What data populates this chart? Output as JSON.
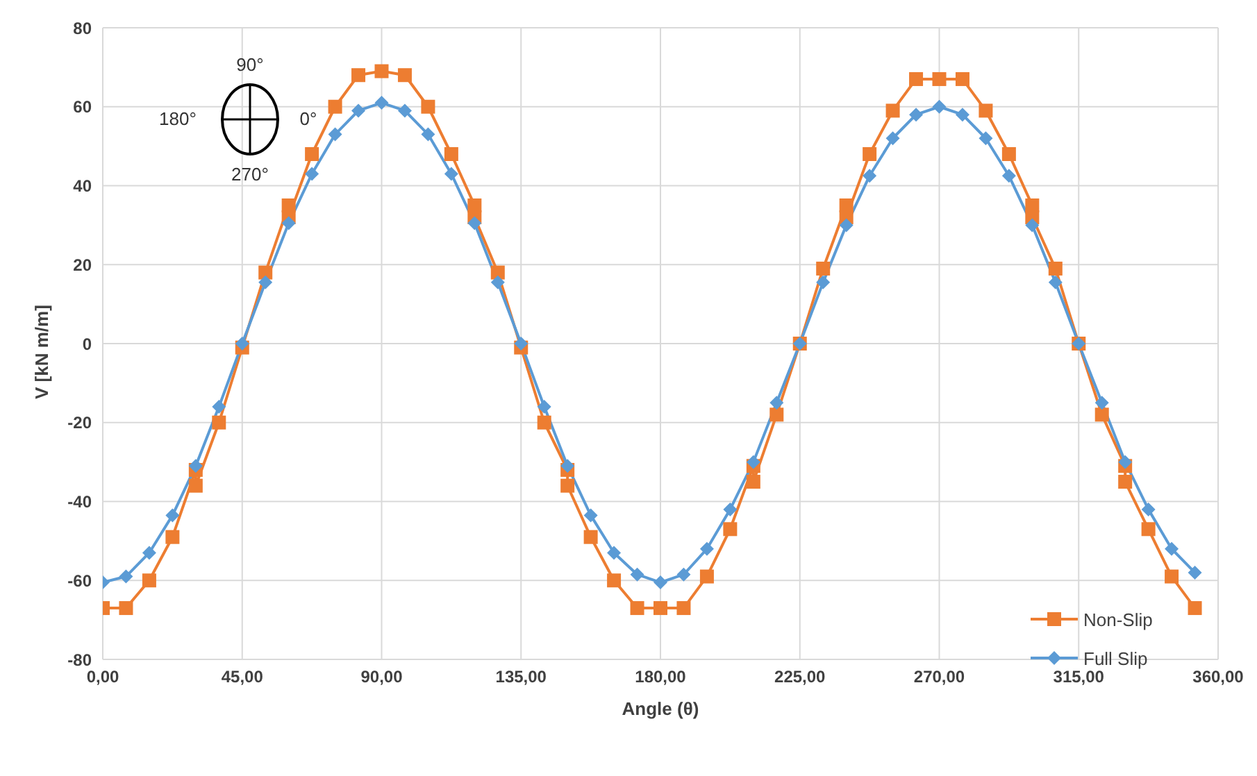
{
  "chart_data": {
    "type": "line",
    "xlabel": "Angle (θ)",
    "ylabel": "V [kN m/m]",
    "annotations": [
      "90°",
      "180°",
      "0°",
      "270°"
    ],
    "xlim": [
      0,
      360
    ],
    "xticks": [
      {
        "value": 0,
        "label": "0,00"
      },
      {
        "value": 45,
        "label": "45,00"
      },
      {
        "value": 90,
        "label": "90,00"
      },
      {
        "value": 135,
        "label": "135,00"
      },
      {
        "value": 180,
        "label": "180,00"
      },
      {
        "value": 225,
        "label": "225,00"
      },
      {
        "value": 270,
        "label": "270,00"
      },
      {
        "value": 315,
        "label": "315,00"
      },
      {
        "value": 360,
        "label": "360,00"
      }
    ],
    "ylim": [
      -80,
      80
    ],
    "yticks": [
      -80,
      -60,
      -40,
      -20,
      0,
      20,
      40,
      60,
      80
    ],
    "grid": true,
    "legend": "bottom right",
    "series": [
      {
        "name": "Non-Slip",
        "color": "#ed7d31",
        "marker": "square",
        "x": [
          0,
          7.5,
          15,
          22.5,
          30,
          30,
          37.5,
          45,
          52.5,
          60,
          60,
          67.5,
          75,
          82.5,
          90,
          97.5,
          105,
          112.5,
          120,
          120,
          127.5,
          135,
          142.5,
          150,
          150,
          157.5,
          165,
          172.5,
          180,
          187.5,
          195,
          202.5,
          210,
          210,
          217.5,
          225,
          232.5,
          240,
          240,
          247.5,
          255,
          262.5,
          270,
          277.5,
          285,
          292.5,
          300,
          300,
          307.5,
          315,
          322.5,
          330,
          330,
          337.5,
          345,
          352.5
        ],
        "values": [
          -67,
          -67,
          -60,
          -49,
          -32,
          -36,
          -20,
          -1,
          18,
          35,
          32,
          48,
          60,
          68,
          69,
          68,
          60,
          48,
          35,
          32,
          18,
          -1,
          -20,
          -32,
          -36,
          -49,
          -60,
          -67,
          -67,
          -67,
          -59,
          -47,
          -31,
          -35,
          -18,
          0,
          19,
          35,
          32,
          48,
          59,
          67,
          67,
          67,
          59,
          48,
          35,
          32,
          19,
          0,
          -18,
          -31,
          -35,
          -47,
          -59,
          -67
        ]
      },
      {
        "name": "Full Slip",
        "color": "#5b9bd5",
        "marker": "diamond",
        "x": [
          0,
          7.5,
          15,
          22.5,
          30,
          37.5,
          45,
          52.5,
          60,
          67.5,
          75,
          82.5,
          90,
          97.5,
          105,
          112.5,
          120,
          127.5,
          135,
          142.5,
          150,
          157.5,
          165,
          172.5,
          180,
          187.5,
          195,
          202.5,
          210,
          217.5,
          225,
          232.5,
          240,
          247.5,
          255,
          262.5,
          270,
          277.5,
          285,
          292.5,
          300,
          307.5,
          315,
          322.5,
          330,
          337.5,
          345,
          352.5
        ],
        "values": [
          -60.5,
          -59,
          -53,
          -43.5,
          -31,
          -16,
          0,
          15.5,
          30.5,
          43,
          53,
          59,
          61,
          59,
          53,
          43,
          30.5,
          15.5,
          0,
          -16,
          -31,
          -43.5,
          -53,
          -58.5,
          -60.5,
          -58.5,
          -52,
          -42,
          -30,
          -15,
          0,
          15.5,
          30,
          42.5,
          52,
          58,
          60,
          58,
          52,
          42.5,
          30,
          15.5,
          0,
          -15,
          -30,
          -42,
          -52,
          -58
        ]
      }
    ]
  }
}
